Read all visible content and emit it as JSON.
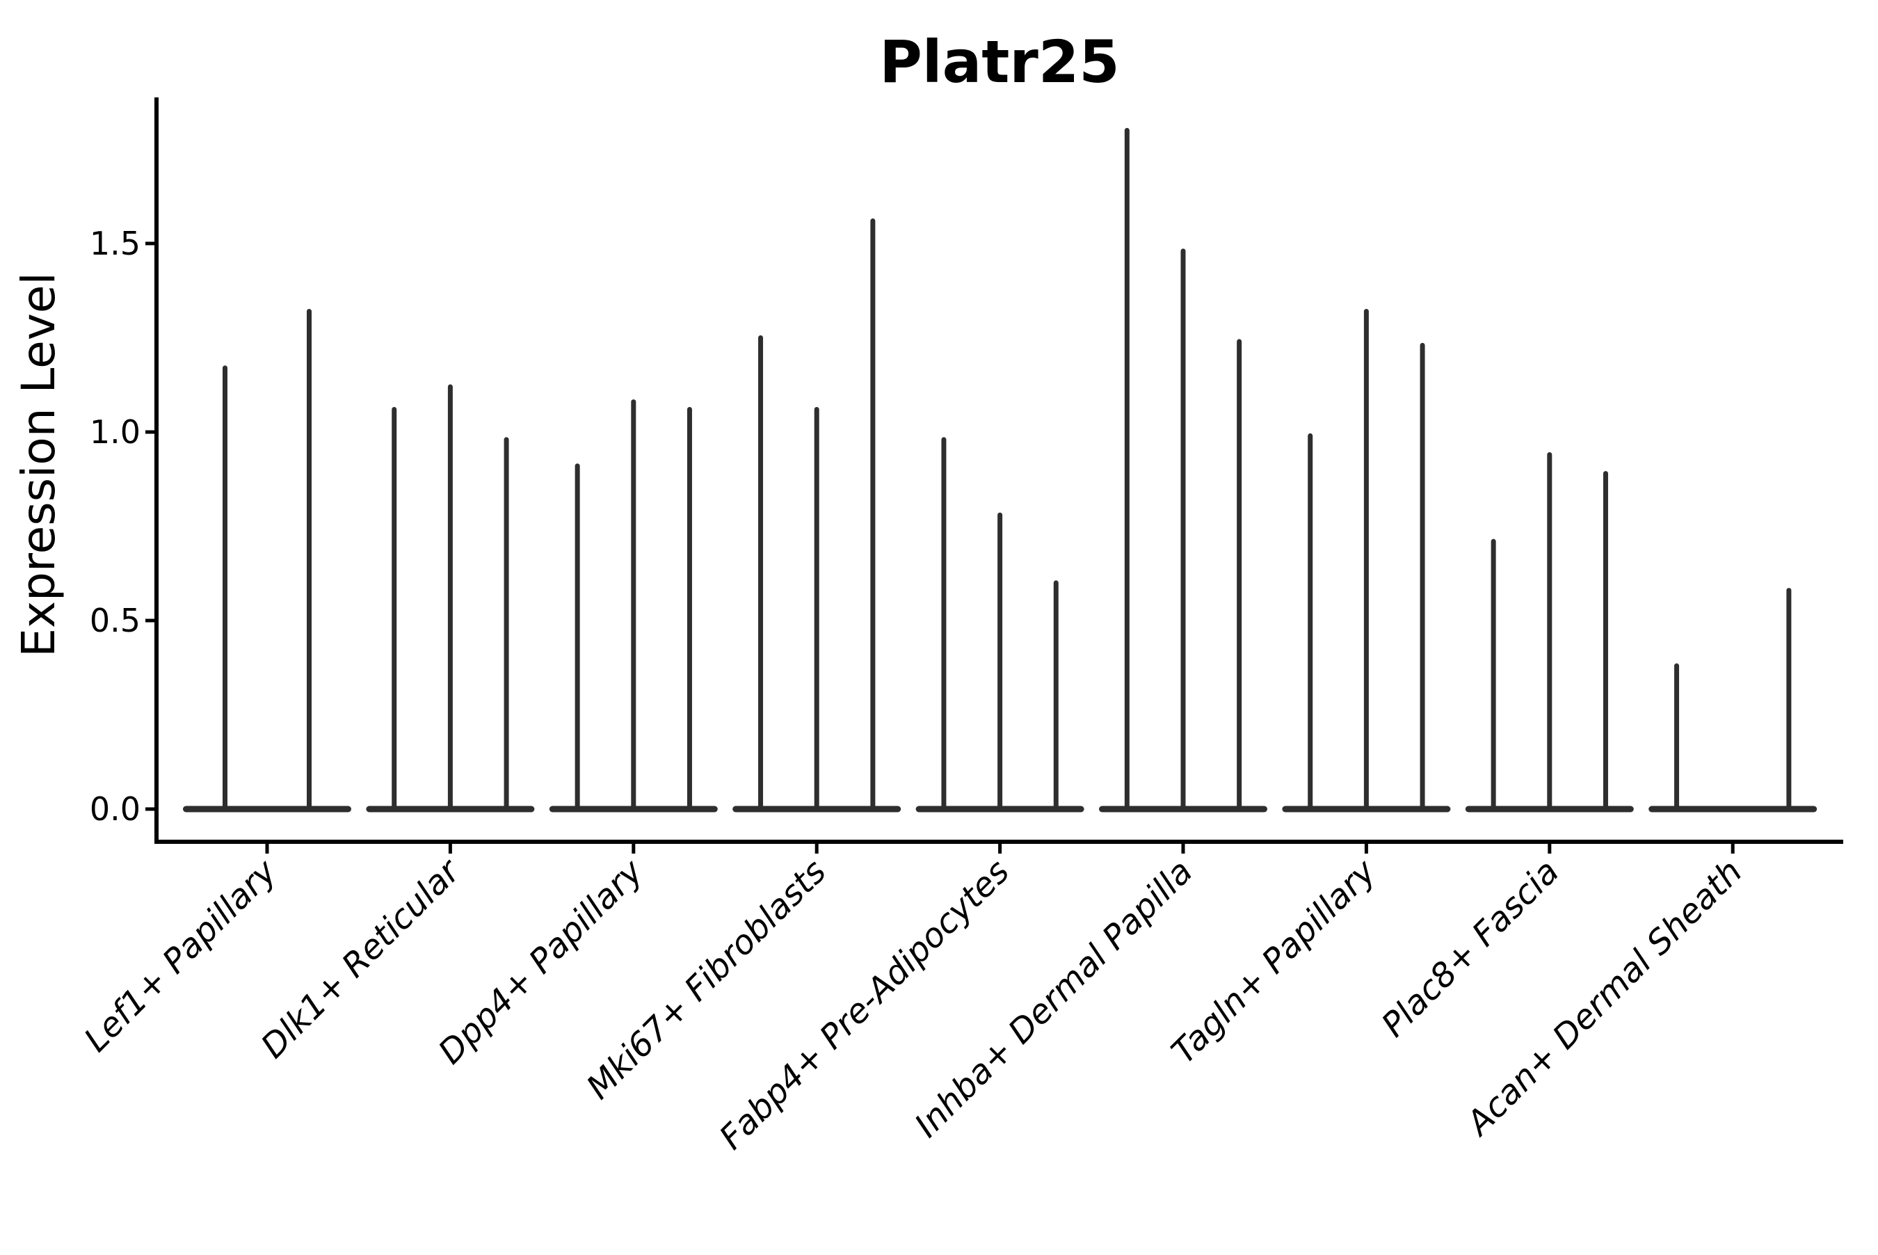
{
  "chart_data": {
    "type": "violin",
    "title": "Platr25",
    "xlabel": "",
    "ylabel": "Expression Level",
    "ylim": [
      -0.09,
      1.89
    ],
    "yticks": [
      0.0,
      0.5,
      1.0,
      1.5
    ],
    "ytick_labels": [
      "0.0",
      "0.5",
      "1.0",
      "1.5"
    ],
    "grid": false,
    "legend": null,
    "violin_style": "thin-spike-with-flat-base",
    "categories": [
      "Lef1+ Papillary",
      "Dlk1+ Reticular",
      "Dpp4+ Papillary",
      "Mki67+ Fibroblasts",
      "Fabp4+ Pre-Adipocytes",
      "Inhba+ Dermal Papilla",
      "Tagln+ Papillary",
      "Plac8+ Fascia",
      "Acan+ Dermal Sheath"
    ],
    "groups": [
      {
        "label": "Lef1+ Papillary",
        "n_violins": 2,
        "violin_max": [
          1.17,
          1.32
        ]
      },
      {
        "label": "Dlk1+ Reticular",
        "n_violins": 3,
        "violin_max": [
          1.06,
          1.12,
          0.98
        ]
      },
      {
        "label": "Dpp4+ Papillary",
        "n_violins": 3,
        "violin_max": [
          0.91,
          1.08,
          1.06
        ]
      },
      {
        "label": "Mki67+ Fibroblasts",
        "n_violins": 3,
        "violin_max": [
          1.25,
          1.06,
          1.56
        ]
      },
      {
        "label": "Fabp4+ Pre-Adipocytes",
        "n_violins": 3,
        "violin_max": [
          0.98,
          0.78,
          0.6
        ]
      },
      {
        "label": "Inhba+ Dermal Papilla",
        "n_violins": 3,
        "violin_max": [
          1.8,
          1.48,
          1.24
        ]
      },
      {
        "label": "Tagln+ Papillary",
        "n_violins": 3,
        "violin_max": [
          0.99,
          1.32,
          1.23
        ]
      },
      {
        "label": "Plac8+ Fascia",
        "n_violins": 3,
        "violin_max": [
          0.71,
          0.94,
          0.89
        ]
      },
      {
        "label": "Acan+ Dermal Sheath",
        "n_violins": 3,
        "violin_max": [
          0.38,
          0.0,
          0.58
        ]
      }
    ],
    "colors": {
      "violin": "#2e2e2e",
      "axis": "#000000",
      "background": "#ffffff"
    }
  }
}
